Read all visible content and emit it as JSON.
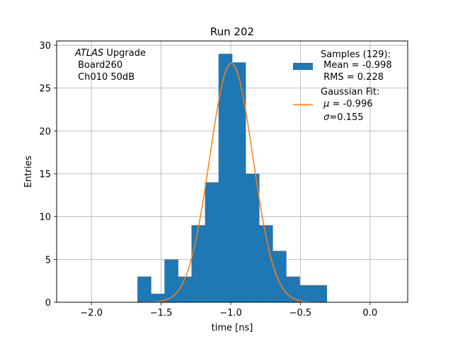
{
  "chart_data": {
    "type": "bar",
    "title": "Run 202",
    "xlabel": "time [ns]",
    "ylabel": "Entries",
    "xlim": [
      -2.25,
      0.27
    ],
    "ylim": [
      0,
      30.5
    ],
    "grid": true,
    "xticks": [
      -2.0,
      -1.5,
      -1.0,
      -0.5,
      0.0
    ],
    "xtick_labels": [
      "−2.0",
      "−1.5",
      "−1.0",
      "−0.5",
      "0.0"
    ],
    "yticks": [
      0,
      5,
      10,
      15,
      20,
      25,
      30
    ],
    "ytick_labels": [
      "0",
      "5",
      "10",
      "15",
      "20",
      "25",
      "30"
    ],
    "histogram": {
      "bin_edges": [
        -1.67,
        -1.573,
        -1.476,
        -1.379,
        -1.282,
        -1.185,
        -1.088,
        -0.991,
        -0.894,
        -0.797,
        -0.7,
        -0.603,
        -0.506,
        -0.409,
        -0.312
      ],
      "counts": [
        3,
        1,
        5,
        3,
        9,
        14,
        29,
        28,
        15,
        9,
        6,
        3,
        2,
        2
      ],
      "color": "#1f77b4"
    },
    "fit": {
      "name": "Gaussian Fit",
      "mu": -0.996,
      "sigma": 0.155,
      "amplitude": 27.9,
      "x_range": [
        -1.67,
        -0.34
      ],
      "color": "#ff7f0e"
    },
    "annotation": {
      "italic": "ATLAS",
      "rest": " Upgrade",
      "line2": " Board260",
      "line3": " Ch010 50dB"
    },
    "legend": {
      "position": "top-right",
      "entries": [
        {
          "lines": [
            "Samples (129):",
            " Mean = -0.998",
            " RMS = 0.228"
          ]
        },
        {
          "line1": "Gaussian Fit:",
          "mu_prefix": " ",
          "mu_symbol": "μ",
          "mu_value": " = -0.996",
          "sigma_prefix": " ",
          "sigma_symbol": "σ",
          "sigma_value": "=0.155"
        }
      ]
    }
  }
}
